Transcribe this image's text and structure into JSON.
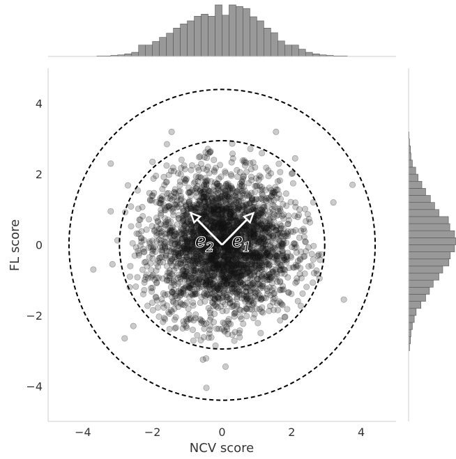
{
  "chart_data": {
    "type": "scatter",
    "title": "",
    "xlabel": "NCV score",
    "ylabel": "FL score",
    "xlim": [
      -5,
      5
    ],
    "ylim": [
      -5,
      5
    ],
    "xticks": [
      -4,
      -2,
      0,
      2,
      4
    ],
    "yticks": [
      -4,
      -2,
      0,
      2,
      4
    ],
    "xtick_labels": [
      "−4",
      "−2",
      "0",
      "2",
      "4"
    ],
    "ytick_labels": [
      "−4",
      "−2",
      "0",
      "2",
      "4"
    ],
    "grid": false,
    "legend": "none",
    "n_points": 3000,
    "distribution": {
      "kind": "bivariate normal",
      "mean": [
        0,
        0
      ],
      "std": [
        1,
        1
      ],
      "correlation": 0
    },
    "outliers": [
      {
        "x": -3.7,
        "y": -0.7
      },
      {
        "x": -3.2,
        "y": 0.95
      },
      {
        "x": -3.2,
        "y": 2.3
      },
      {
        "x": -2.8,
        "y": -2.65
      },
      {
        "x": -2.55,
        "y": -2.3
      },
      {
        "x": -1.45,
        "y": 3.2
      },
      {
        "x": -0.45,
        "y": -4.05
      },
      {
        "x": 0.1,
        "y": -3.45
      },
      {
        "x": -0.55,
        "y": -3.25
      },
      {
        "x": 1.55,
        "y": 3.2
      },
      {
        "x": 3.2,
        "y": 1.2
      },
      {
        "x": 3.75,
        "y": 1.7
      },
      {
        "x": 3.5,
        "y": -1.55
      },
      {
        "x": 2.8,
        "y": -0.95
      },
      {
        "x": -3.15,
        "y": -0.55
      },
      {
        "x": 2.1,
        "y": 2.45
      },
      {
        "x": -2.0,
        "y": 2.35
      }
    ],
    "circles": [
      {
        "center": [
          0,
          0
        ],
        "radius": 2.95,
        "style": "dashed"
      },
      {
        "center": [
          0,
          0
        ],
        "radius": 4.4,
        "style": "dashed"
      }
    ],
    "vectors": [
      {
        "label": "e1",
        "from": [
          0,
          0
        ],
        "to": [
          0.9,
          0.9
        ]
      },
      {
        "label": "e2",
        "from": [
          0,
          0
        ],
        "to": [
          -0.9,
          0.9
        ]
      }
    ],
    "marginal_x": {
      "type": "histogram",
      "bin_edges_range": [
        -3.6,
        3.6
      ],
      "bin_width": 0.2,
      "relative_heights": [
        0.01,
        0.01,
        0.02,
        0.03,
        0.05,
        0.08,
        0.22,
        0.22,
        0.29,
        0.37,
        0.45,
        0.55,
        0.63,
        0.69,
        0.78,
        0.82,
        0.78,
        1.0,
        0.8,
        1.0,
        0.97,
        0.93,
        0.77,
        0.69,
        0.55,
        0.46,
        0.3,
        0.22,
        0.22,
        0.14,
        0.08,
        0.05,
        0.03,
        0.02,
        0.01,
        0.01
      ]
    },
    "marginal_y": {
      "type": "histogram",
      "bin_edges_range": [
        -3.6,
        3.6
      ],
      "bin_width": 0.2,
      "relative_heights": [
        0.0,
        0.0,
        0.0,
        0.02,
        0.04,
        0.05,
        0.08,
        0.12,
        0.16,
        0.26,
        0.36,
        0.44,
        0.52,
        0.64,
        0.72,
        0.85,
        0.88,
        0.97,
        1.0,
        0.97,
        0.87,
        0.84,
        0.64,
        0.55,
        0.46,
        0.36,
        0.28,
        0.2,
        0.15,
        0.08,
        0.05,
        0.04,
        0.02,
        0.01,
        0.0,
        0.0
      ]
    },
    "colors": {
      "points": "#111111",
      "bars": "#999999",
      "bar_edge": "#555555",
      "axes": "#cccccc",
      "circles": "#000000",
      "vectors": "#ffffff"
    }
  }
}
